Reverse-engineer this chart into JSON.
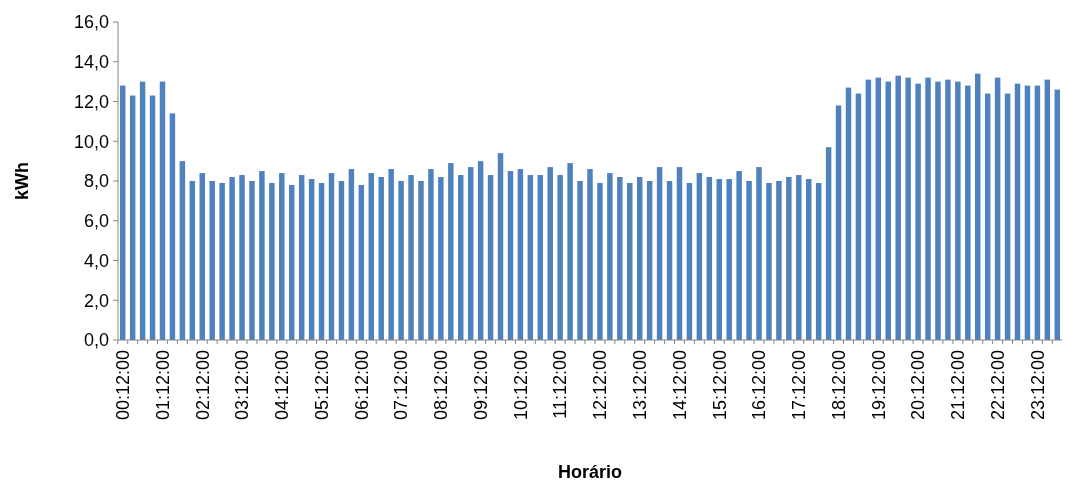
{
  "chart_data": {
    "type": "bar",
    "xlabel": "Horário",
    "ylabel": "kWh",
    "color": "#4f81bd",
    "categories": [
      "00:12:00",
      null,
      null,
      null,
      "01:12:00",
      null,
      null,
      null,
      "02:12:00",
      null,
      null,
      null,
      "03:12:00",
      null,
      null,
      null,
      "04:12:00",
      null,
      null,
      null,
      "05:12:00",
      null,
      null,
      null,
      "06:12:00",
      null,
      null,
      null,
      "07:12:00",
      null,
      null,
      null,
      "08:12:00",
      null,
      null,
      null,
      "09:12:00",
      null,
      null,
      null,
      "10:12:00",
      null,
      null,
      null,
      "11:12:00",
      null,
      null,
      null,
      "12:12:00",
      null,
      null,
      null,
      "13:12:00",
      null,
      null,
      null,
      "14:12:00",
      null,
      null,
      null,
      "15:12:00",
      null,
      null,
      null,
      "16:12:00",
      null,
      null,
      null,
      "17:12:00",
      null,
      null,
      null,
      "18:12:00",
      null,
      null,
      null,
      "19:12:00",
      null,
      null,
      null,
      "20:12:00",
      null,
      null,
      null,
      "21:12:00",
      null,
      null,
      null,
      "22:12:00",
      null,
      null,
      null,
      "23:12:00",
      null,
      null
    ],
    "values": [
      12.8,
      12.3,
      13.0,
      12.3,
      13.0,
      11.4,
      9.0,
      8.0,
      8.4,
      8.0,
      7.9,
      8.2,
      8.3,
      8.0,
      8.5,
      7.9,
      8.4,
      7.8,
      8.3,
      8.1,
      7.9,
      8.4,
      8.0,
      8.6,
      7.8,
      8.4,
      8.2,
      8.6,
      8.0,
      8.3,
      8.0,
      8.6,
      8.2,
      8.9,
      8.3,
      8.7,
      9.0,
      8.3,
      9.4,
      8.5,
      8.6,
      8.3,
      8.3,
      8.7,
      8.3,
      8.9,
      8.0,
      8.6,
      7.9,
      8.4,
      8.2,
      7.9,
      8.2,
      8.0,
      8.7,
      8.0,
      8.7,
      7.9,
      8.4,
      8.2,
      8.1,
      8.1,
      8.5,
      8.0,
      8.7,
      7.9,
      8.0,
      8.2,
      8.3,
      8.1,
      7.9,
      9.7,
      11.8,
      12.7,
      12.4,
      13.1,
      13.2,
      13.0,
      13.3,
      13.2,
      12.9,
      13.2,
      13.0,
      13.1,
      13.0,
      12.8,
      13.4,
      12.4,
      13.2,
      12.4,
      12.9,
      12.8,
      12.8,
      13.1,
      12.6
    ],
    "ylim": [
      0,
      16
    ],
    "yticks": [
      {
        "value": 0,
        "label": "0,0"
      },
      {
        "value": 2,
        "label": "2,0"
      },
      {
        "value": 4,
        "label": "4,0"
      },
      {
        "value": 6,
        "label": "6,0"
      },
      {
        "value": 8,
        "label": "8,0"
      },
      {
        "value": 10,
        "label": "10,0"
      },
      {
        "value": 12,
        "label": "12,0"
      },
      {
        "value": 14,
        "label": "14,0"
      },
      {
        "value": 16,
        "label": "16,0"
      }
    ]
  }
}
